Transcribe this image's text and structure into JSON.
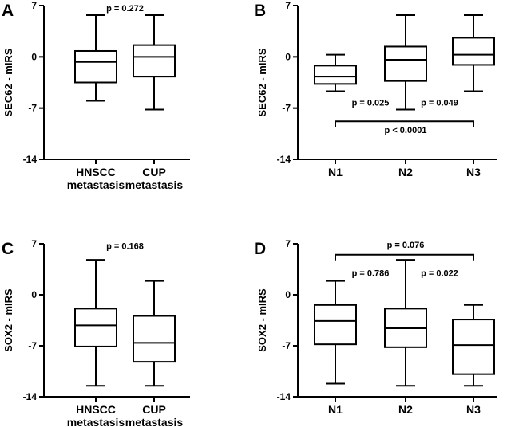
{
  "chart_data": [
    {
      "type": "box",
      "panel": "A",
      "ylabel": "SEC62 - mIRS",
      "ylim": [
        -14,
        7
      ],
      "yticks": [
        7,
        0,
        -7,
        -14
      ],
      "categories": [
        {
          "lines": [
            "HNSCC",
            "metastasis"
          ]
        },
        {
          "lines": [
            "CUP",
            "metastasis"
          ]
        }
      ],
      "boxes": [
        {
          "min": -6,
          "q1": -3.5,
          "median": -0.7,
          "q3": 0.8,
          "max": 5.7
        },
        {
          "min": -7.2,
          "q1": -2.7,
          "median": 0,
          "q3": 1.6,
          "max": 5.7
        }
      ],
      "annotations": [
        {
          "text": "p = 0.272",
          "x": 1.5,
          "y": 6.7
        }
      ],
      "brackets": []
    },
    {
      "type": "box",
      "panel": "B",
      "ylabel": "SEC62 - mIRS",
      "ylim": [
        -14,
        7
      ],
      "yticks": [
        7,
        0,
        -7,
        -14
      ],
      "categories": [
        {
          "lines": [
            "N1"
          ]
        },
        {
          "lines": [
            "N2"
          ]
        },
        {
          "lines": [
            "N3"
          ]
        }
      ],
      "boxes": [
        {
          "min": -4.7,
          "q1": -3.7,
          "median": -2.7,
          "q3": -1.2,
          "max": 0.3
        },
        {
          "min": -7.2,
          "q1": -3.3,
          "median": -0.4,
          "q3": 1.4,
          "max": 5.7
        },
        {
          "min": -4.7,
          "q1": -1.1,
          "median": 0.3,
          "q3": 2.6,
          "max": 5.7
        }
      ],
      "annotations": [
        {
          "text": "p = 0.025",
          "x": 1.5,
          "y": -6.2
        },
        {
          "text": "p = 0.049",
          "x": 2.5,
          "y": -6.2
        },
        {
          "text": "p < 0.0001",
          "x": 2.0,
          "y": -10.0
        }
      ],
      "brackets": [
        {
          "from": 1,
          "to": 3,
          "y": -8.8,
          "dir": "down"
        }
      ]
    },
    {
      "type": "box",
      "panel": "C",
      "ylabel": "SOX2 - mIRS",
      "ylim": [
        -14,
        7
      ],
      "yticks": [
        7,
        0,
        -7,
        -14
      ],
      "categories": [
        {
          "lines": [
            "HNSCC",
            "metastasis"
          ]
        },
        {
          "lines": [
            "CUP",
            "metastasis"
          ]
        }
      ],
      "boxes": [
        {
          "min": -12.5,
          "q1": -7.1,
          "median": -4.2,
          "q3": -1.9,
          "max": 4.8
        },
        {
          "min": -12.5,
          "q1": -9.2,
          "median": -6.6,
          "q3": -2.9,
          "max": 1.9
        }
      ],
      "annotations": [
        {
          "text": "p = 0.168",
          "x": 1.5,
          "y": 6.7
        }
      ],
      "brackets": []
    },
    {
      "type": "box",
      "panel": "D",
      "ylabel": "SOX2 - mIRS",
      "ylim": [
        -14,
        7
      ],
      "yticks": [
        7,
        0,
        -7,
        -14
      ],
      "categories": [
        {
          "lines": [
            "N1"
          ]
        },
        {
          "lines": [
            "N2"
          ]
        },
        {
          "lines": [
            "N3"
          ]
        }
      ],
      "boxes": [
        {
          "min": -12.2,
          "q1": -6.8,
          "median": -3.6,
          "q3": -1.4,
          "max": 1.9
        },
        {
          "min": -12.5,
          "q1": -7.2,
          "median": -4.6,
          "q3": -1.9,
          "max": 4.8
        },
        {
          "min": -12.5,
          "q1": -10.9,
          "median": -6.9,
          "q3": -3.4,
          "max": -1.4
        }
      ],
      "annotations": [
        {
          "text": "p = 0.786",
          "x": 1.5,
          "y": 3.0
        },
        {
          "text": "p = 0.022",
          "x": 2.5,
          "y": 3.0
        },
        {
          "text": "p = 0.076",
          "x": 2.0,
          "y": 6.9
        }
      ],
      "brackets": [
        {
          "from": 1,
          "to": 3,
          "y": 5.5,
          "dir": "down"
        }
      ]
    }
  ]
}
